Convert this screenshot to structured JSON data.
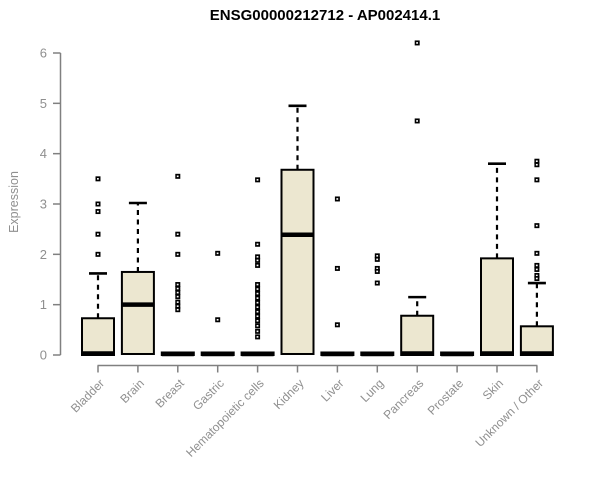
{
  "page": {
    "background": "#ffffff"
  },
  "chart_data": {
    "type": "boxplot",
    "title": "ENSG00000212712 - AP002414.1",
    "ylabel": "Expression",
    "xlabel": "",
    "ylim": [
      0,
      6
    ],
    "yticks": [
      0,
      1,
      2,
      3,
      4,
      5,
      6
    ],
    "grid": false,
    "legend": "none",
    "colors": {
      "box_fill": "#ece7d0",
      "box_stroke": "#000000",
      "median": "#000000",
      "whisker": "#000000",
      "outlier": "#000000",
      "axis_line": "#808080",
      "axis_text": "#8f8f8f",
      "title_text": "#000000"
    },
    "categories": [
      "Bladder",
      "Brain",
      "Breast",
      "Gastric",
      "Hematopoietic cells",
      "Kidney",
      "Liver",
      "Lung",
      "Pancreas",
      "Prostate",
      "Skin",
      "Unknown / Other"
    ],
    "series": [
      {
        "category": "Bladder",
        "q1": 0,
        "median": 0.03,
        "q3": 0.73,
        "whisker_low": 0,
        "whisker_high": 1.62,
        "outliers": [
          2.0,
          2.4,
          2.85,
          3.0,
          3.5
        ]
      },
      {
        "category": "Brain",
        "q1": 0.02,
        "median": 1.0,
        "q3": 1.65,
        "whisker_low": 0,
        "whisker_high": 3.02,
        "outliers": []
      },
      {
        "category": "Breast",
        "q1": 0,
        "median": 0.02,
        "q3": 0.05,
        "whisker_low": 0,
        "whisker_high": 0.05,
        "outliers": [
          3.55,
          2.4,
          2.0,
          1.4,
          1.32,
          1.24,
          1.16,
          1.05,
          0.97,
          0.9
        ]
      },
      {
        "category": "Gastric",
        "q1": 0,
        "median": 0.02,
        "q3": 0.05,
        "whisker_low": 0,
        "whisker_high": 0.05,
        "outliers": [
          2.02,
          0.7
        ]
      },
      {
        "category": "Hematopoietic cells",
        "q1": 0,
        "median": 0.02,
        "q3": 0.05,
        "whisker_low": 0,
        "whisker_high": 0.05,
        "outliers": [
          3.48,
          2.2,
          1.95,
          1.88,
          1.78,
          1.4,
          1.31,
          1.22,
          1.13,
          1.04,
          0.95,
          0.86,
          0.77,
          0.68,
          0.58,
          0.47,
          0.36
        ]
      },
      {
        "category": "Kidney",
        "q1": 0.02,
        "median": 2.39,
        "q3": 3.68,
        "whisker_low": 0,
        "whisker_high": 4.95,
        "outliers": []
      },
      {
        "category": "Liver",
        "q1": 0,
        "median": 0.02,
        "q3": 0.05,
        "whisker_low": 0,
        "whisker_high": 0.05,
        "outliers": [
          3.1,
          1.72,
          0.6
        ]
      },
      {
        "category": "Lung",
        "q1": 0,
        "median": 0.02,
        "q3": 0.05,
        "whisker_low": 0,
        "whisker_high": 0.05,
        "outliers": [
          1.97,
          1.9,
          1.72,
          1.66,
          1.43
        ]
      },
      {
        "category": "Pancreas",
        "q1": 0,
        "median": 0.03,
        "q3": 0.78,
        "whisker_low": 0,
        "whisker_high": 1.15,
        "outliers": [
          6.2,
          4.65
        ]
      },
      {
        "category": "Prostate",
        "q1": 0,
        "median": 0.02,
        "q3": 0.05,
        "whisker_low": 0,
        "whisker_high": 0.05,
        "outliers": []
      },
      {
        "category": "Skin",
        "q1": 0,
        "median": 0.03,
        "q3": 1.92,
        "whisker_low": 0,
        "whisker_high": 3.8,
        "outliers": []
      },
      {
        "category": "Unknown / Other",
        "q1": 0,
        "median": 0.03,
        "q3": 0.57,
        "whisker_low": 0,
        "whisker_high": 1.43,
        "outliers": [
          3.85,
          3.78,
          3.48,
          2.57,
          2.02,
          1.78,
          1.7,
          1.58,
          1.52
        ]
      }
    ]
  }
}
